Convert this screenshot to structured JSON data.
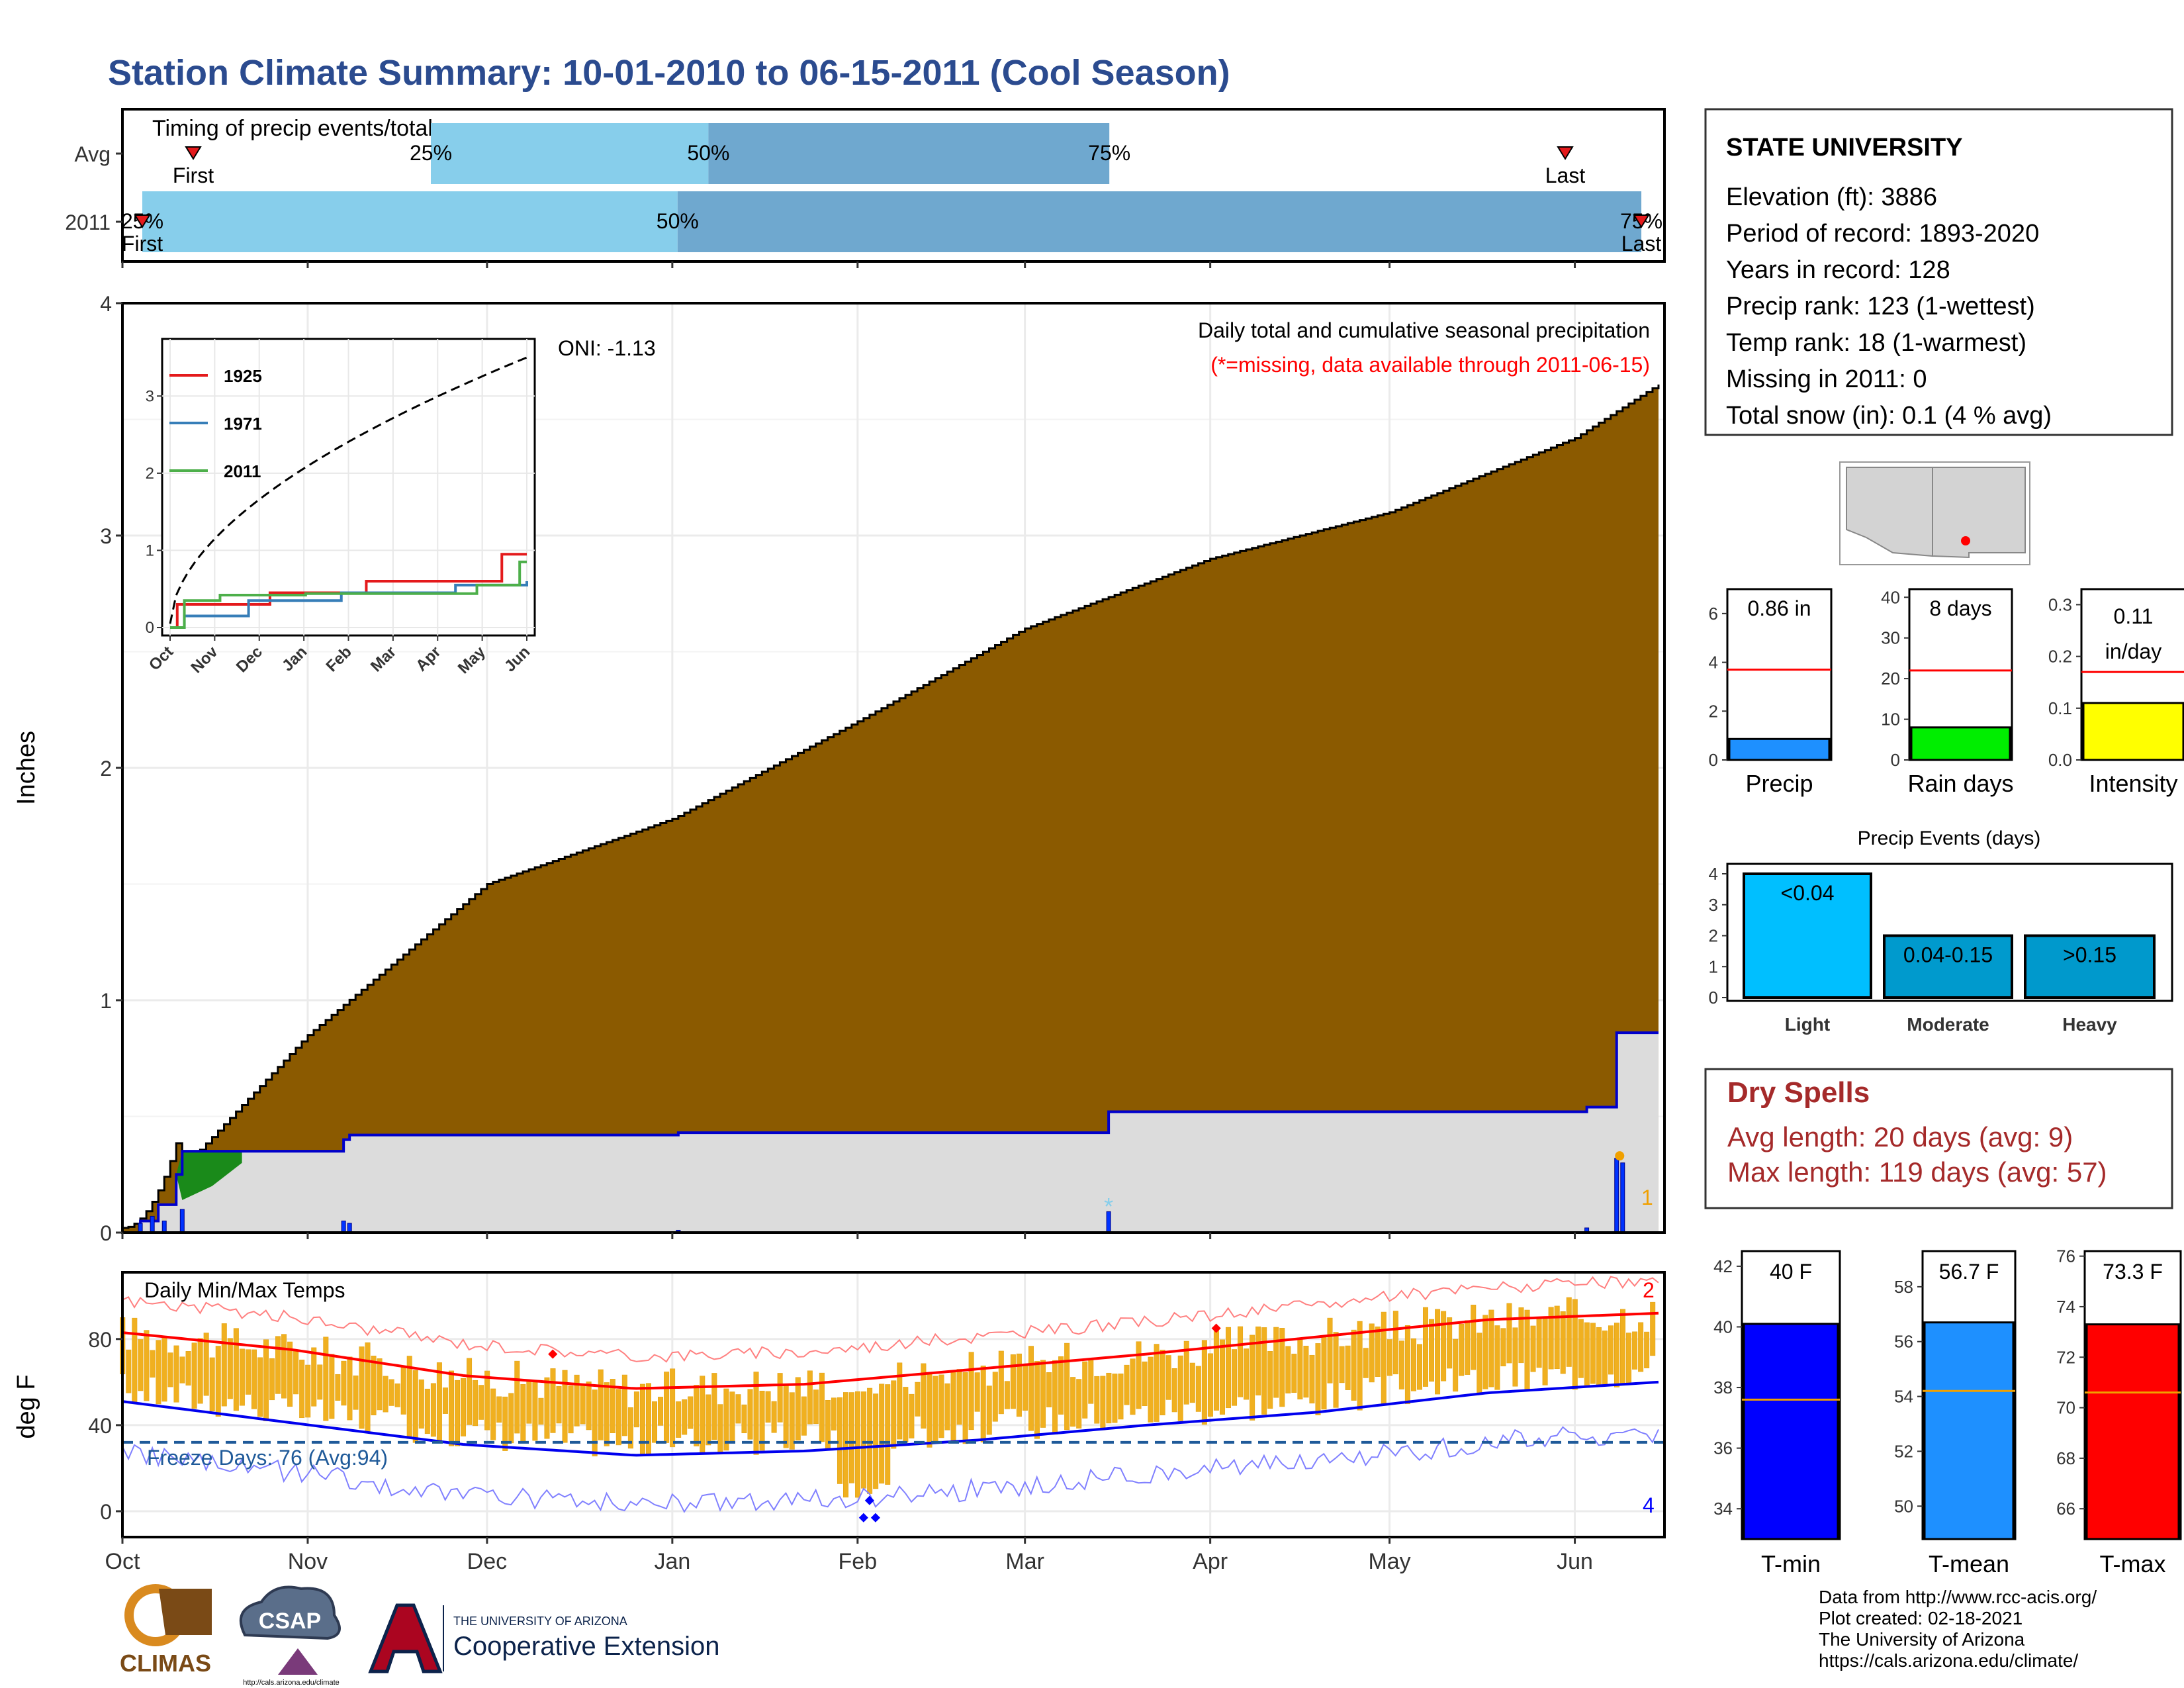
{
  "title": "Station Climate Summary: 10-01-2010 to 06-15-2011 (Cool Season)",
  "timing": {
    "label": "Timing of precip events/totals",
    "rows": [
      {
        "name": "Avg",
        "first_frac": 0.03,
        "q25_frac": 0.2,
        "q50_frac": 0.38,
        "q75_frac": 0.64,
        "last_frac": 0.93,
        "labels": {
          "q25": "25%",
          "q50": "50%",
          "q75": "75%",
          "first": "First",
          "last": "Last"
        }
      },
      {
        "name": "2011",
        "first_frac": 0.003,
        "q25_frac": 0.003,
        "q50_frac": 0.36,
        "q75_frac": 0.98,
        "last_frac": 0.98,
        "labels": {
          "q25": "25%",
          "q50": "50%",
          "q75": "75%",
          "first": "First",
          "last": "Last"
        }
      }
    ]
  },
  "precip_panel": {
    "ylabel": "Inches",
    "y_ticks": [
      "0",
      "1",
      "2",
      "3",
      "4"
    ],
    "oni": "ONI: -1.13",
    "title": "Daily total and cumulative seasonal precipitation",
    "subtitle": "(*=missing, data available through 2011-06-15)",
    "right_number": "1"
  },
  "inset": {
    "y_ticks": [
      "0",
      "1",
      "2",
      "3"
    ],
    "x_ticks": [
      "Oct",
      "Nov",
      "Dec",
      "Jan",
      "Feb",
      "Mar",
      "Apr",
      "May",
      "Jun"
    ],
    "legend": [
      {
        "name": "1925",
        "color": "#e41a1c"
      },
      {
        "name": "1971",
        "color": "#377eb8"
      },
      {
        "name": "2011",
        "color": "#4daf4a"
      }
    ]
  },
  "temp_panel": {
    "ylabel": "deg F",
    "label": "Daily Min/Max Temps",
    "y_ticks": [
      "0",
      "40",
      "80"
    ],
    "freeze": "Freeze Days: 76 (Avg:94)",
    "top_number": "2",
    "bottom_number": "4"
  },
  "x_months": [
    "Oct",
    "Nov",
    "Dec",
    "Jan",
    "Feb",
    "Mar",
    "Apr",
    "May",
    "Jun"
  ],
  "info_box": {
    "station": "STATE UNIVERSITY",
    "lines": [
      "Elevation (ft): 3886",
      "Period of record: 1893-2020",
      "Years in record: 128",
      "Precip rank: 123 (1-wettest)",
      "Temp rank: 18 (1-warmest)",
      "Missing in 2011: 0",
      "Total snow (in): 0.1 (4 % avg)"
    ]
  },
  "mini_bars": [
    {
      "label": "Precip",
      "value_text": "0.86 in",
      "value": 0.86,
      "avg": 3.7,
      "max": 7,
      "ticks": [
        "0",
        "2",
        "4",
        "6"
      ],
      "color": "#1e90ff"
    },
    {
      "label": "Rain days",
      "value_text": "8 days",
      "value": 8,
      "avg": 22,
      "max": 42,
      "ticks": [
        "0",
        "10",
        "20",
        "30",
        "40"
      ],
      "color": "#00ee00"
    },
    {
      "label": "Intensity",
      "value_text": "0.11 in/day",
      "value_text_1": "0.11",
      "value_text_2": "in/day",
      "value": 0.11,
      "avg": 0.17,
      "max": 0.33,
      "ticks": [
        "0.0",
        "0.1",
        "0.2",
        "0.3"
      ],
      "color": "#ffff00"
    }
  ],
  "precip_events": {
    "title": "Precip Events (days)",
    "y_ticks": [
      "0",
      "1",
      "2",
      "3",
      "4"
    ],
    "bars": [
      {
        "label": "Light",
        "range": "<0.04",
        "value": 4,
        "color": "#00bfff"
      },
      {
        "label": "Moderate",
        "range": "0.04-0.15",
        "value": 2,
        "color": "#009acd"
      },
      {
        "label": "Heavy",
        "range": ">0.15",
        "value": 2,
        "color": "#0099cc"
      }
    ]
  },
  "dry_spells": {
    "title": "Dry Spells",
    "avg": "Avg length: 20 days (avg: 9)",
    "max": "Max length: 119 days (avg: 57)"
  },
  "temp_bars": [
    {
      "label": "T-min",
      "value_text": "40 F",
      "value": 40.1,
      "avg": 37.6,
      "min": 33,
      "max": 42.5,
      "ticks": [
        "34",
        "36",
        "38",
        "40",
        "42"
      ],
      "color": "#0000ff"
    },
    {
      "label": "T-mean",
      "value_text": "56.7 F",
      "value": 56.7,
      "avg": 54.2,
      "min": 48.8,
      "max": 59.3,
      "ticks": [
        "50",
        "52",
        "54",
        "56",
        "58"
      ],
      "color": "#1e90ff"
    },
    {
      "label": "T-max",
      "value_text": "73.3 F",
      "value": 73.3,
      "avg": 70.6,
      "min": 64.8,
      "max": 76.2,
      "ticks": [
        "66",
        "68",
        "70",
        "72",
        "74",
        "76"
      ],
      "color": "#ff0000"
    }
  ],
  "footer": {
    "lines": [
      "Data from http://www.rcc-acis.org/",
      "Plot created: 02-18-2021",
      "The University of Arizona",
      "https://cals.arizona.edu/climate/"
    ],
    "climas": "CLIMAS",
    "csap": "CSAP",
    "csap_url": "http://cals.arizona.edu/climate",
    "ua_small": "THE UNIVERSITY OF ARIZONA",
    "coop": "Cooperative Extension"
  },
  "chart_data": [
    {
      "type": "area",
      "title": "Daily total and cumulative seasonal precipitation",
      "ylabel": "Inches",
      "ylim": [
        0,
        4
      ],
      "x": [
        "2010-10-01",
        "2010-11-01",
        "2010-12-01",
        "2011-01-01",
        "2011-02-01",
        "2011-03-01",
        "2011-04-01",
        "2011-05-01",
        "2011-06-01",
        "2011-06-15"
      ],
      "series": [
        {
          "name": "Avg cumulative",
          "values": [
            0.0,
            0.85,
            1.5,
            1.78,
            2.2,
            2.6,
            2.9,
            3.1,
            3.42,
            3.65
          ]
        },
        {
          "name": "2011 cumulative",
          "values": [
            0.0,
            0.42,
            0.42,
            0.43,
            0.52,
            0.52,
            0.52,
            0.52,
            0.53,
            0.86
          ]
        }
      ]
    },
    {
      "type": "line",
      "title": "Daily Min/Max Temps",
      "ylabel": "deg F",
      "x": [
        "2010-10-01",
        "2010-11-01",
        "2010-12-01",
        "2011-01-01",
        "2011-02-01",
        "2011-03-01",
        "2011-04-01",
        "2011-05-01",
        "2011-06-01",
        "2011-06-15"
      ],
      "series": [
        {
          "name": "Avg Tmax",
          "values": [
            83,
            75,
            63,
            57,
            59,
            66,
            73,
            81,
            89,
            92
          ]
        },
        {
          "name": "Avg Tmin",
          "values": [
            51,
            41,
            31,
            26,
            28,
            33,
            40,
            46,
            55,
            60
          ]
        }
      ]
    },
    {
      "type": "line",
      "legend": [
        "1925",
        "1971",
        "2011"
      ],
      "xticks": [
        "Oct",
        "Nov",
        "Dec",
        "Jan",
        "Feb",
        "Mar",
        "Apr",
        "May",
        "Jun"
      ],
      "ylim": [
        0,
        3.5
      ],
      "series": [
        {
          "name": "1925",
          "values": [
            0.0,
            0.3,
            0.3,
            0.6,
            0.7,
            0.7,
            1.0,
            1.0,
            1.3
          ]
        },
        {
          "name": "1971",
          "values": [
            0.0,
            0.2,
            0.3,
            0.5,
            0.6,
            0.7,
            0.7,
            0.8,
            0.8
          ]
        },
        {
          "name": "2011",
          "values": [
            0.0,
            0.45,
            0.45,
            0.55,
            0.55,
            0.55,
            0.7,
            0.7,
            1.0
          ]
        }
      ]
    },
    {
      "type": "bar",
      "title": "Precip Events (days)",
      "categories": [
        "Light",
        "Moderate",
        "Heavy"
      ],
      "values": [
        4,
        2,
        2
      ],
      "ylim": [
        0,
        4
      ]
    }
  ]
}
